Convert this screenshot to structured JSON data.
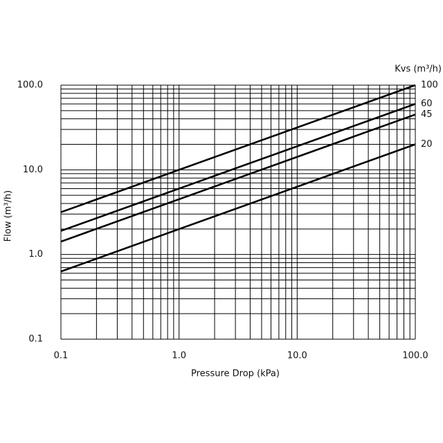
{
  "chart_data": {
    "type": "line",
    "xlabel": "Pressure Drop (kPa)",
    "ylabel": "Flow (m³/h)",
    "legend_title": "Kvs (m³/h)",
    "log_x": true,
    "log_y": true,
    "grid": true,
    "x": [
      0.1,
      100
    ],
    "series": [
      {
        "name": "100",
        "color": "#000000",
        "values": [
          3.16,
          100
        ]
      },
      {
        "name": "60",
        "color": "#000000",
        "values": [
          1.9,
          60
        ]
      },
      {
        "name": "45",
        "color": "#000000",
        "values": [
          1.42,
          45
        ]
      },
      {
        "name": "20",
        "color": "#000000",
        "values": [
          0.63,
          20
        ]
      }
    ],
    "xlim": [
      0.1,
      100
    ],
    "ylim": [
      0.1,
      100
    ],
    "xticks": [
      0.1,
      {
        "value": 1,
        "label": "1.0"
      },
      {
        "value": 10,
        "label": "10.0"
      },
      {
        "value": 100,
        "label": "100.0"
      }
    ],
    "yticks": [
      0.1,
      {
        "value": 1,
        "label": "1.0"
      },
      {
        "value": 10,
        "label": "10.0"
      },
      {
        "value": 100,
        "label": "100.0"
      }
    ],
    "xminorticks": [
      0.2,
      0.3,
      0.4,
      0.5,
      0.6,
      0.7,
      0.8,
      0.9,
      2,
      3,
      4,
      5,
      6,
      7,
      8,
      9,
      20,
      30,
      40,
      50,
      60,
      70,
      80,
      90
    ],
    "yminorticks": [
      0.2,
      0.3,
      0.4,
      0.5,
      0.6,
      0.7,
      0.8,
      0.9,
      2,
      3,
      4,
      5,
      6,
      7,
      8,
      9,
      20,
      30,
      40,
      50,
      60,
      70,
      80,
      90
    ]
  }
}
